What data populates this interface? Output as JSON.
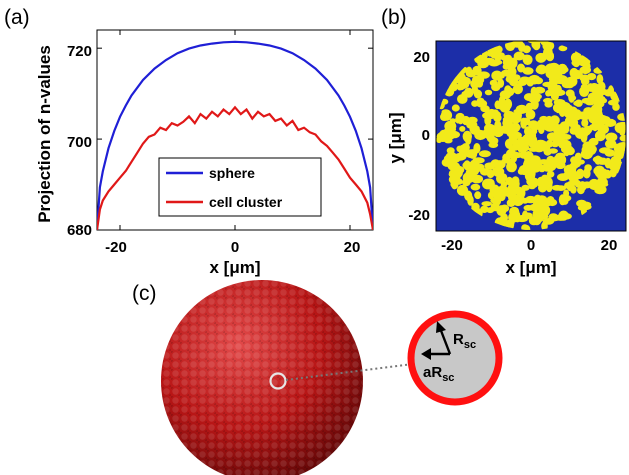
{
  "panels": {
    "a": "(a)",
    "b": "(b)",
    "c": "(c)"
  },
  "chart_data": [
    {
      "type": "line",
      "panel": "(a)",
      "xlabel": "x [μm]",
      "ylabel": "Projection of n-values",
      "xlim": [
        -24,
        24
      ],
      "ylim": [
        680,
        724
      ],
      "xticks": [
        "-20",
        "0",
        "20"
      ],
      "yticks": [
        "680",
        "700",
        "720"
      ],
      "legend_position": "bottom-center",
      "series": [
        {
          "name": "sphere",
          "color": "#1f1fd6",
          "x": [
            -24,
            -23.5,
            -23,
            -22,
            -21,
            -20,
            -19,
            -18,
            -16,
            -14,
            -12,
            -10,
            -8,
            -6,
            -4,
            -2,
            0,
            2,
            4,
            6,
            8,
            10,
            12,
            14,
            16,
            18,
            19,
            20,
            21,
            22,
            23,
            23.5,
            24
          ],
          "y": [
            680,
            689.4,
            692.9,
            698.0,
            701.8,
            704.9,
            707.4,
            709.6,
            713.0,
            715.5,
            717.4,
            718.9,
            719.9,
            720.6,
            721.0,
            721.3,
            721.4,
            721.3,
            721.0,
            720.6,
            719.9,
            718.9,
            717.4,
            715.5,
            713.0,
            709.6,
            707.4,
            704.9,
            701.8,
            698.0,
            692.9,
            689.4,
            680
          ]
        },
        {
          "name": "cell cluster",
          "color": "#e01818",
          "x": [
            -24,
            -23.5,
            -23,
            -22,
            -21,
            -20,
            -19,
            -18,
            -17,
            -16,
            -15,
            -14,
            -13,
            -12,
            -11,
            -10,
            -9,
            -8,
            -7,
            -6,
            -5,
            -4,
            -3,
            -2,
            -1,
            0,
            1,
            2,
            3,
            4,
            5,
            6,
            7,
            8,
            9,
            10,
            11,
            12,
            13,
            14,
            15,
            16,
            17,
            18,
            19,
            20,
            21,
            22,
            23,
            23.5,
            24
          ],
          "y": [
            680,
            684.5,
            686.5,
            688.5,
            690.0,
            691.5,
            693.0,
            695.0,
            697.0,
            699.0,
            700.5,
            701.0,
            702.5,
            702.0,
            703.5,
            703.0,
            703.8,
            705.0,
            703.5,
            705.5,
            704.5,
            706.0,
            705.0,
            706.5,
            705.5,
            707.0,
            705.5,
            706.5,
            704.5,
            706.0,
            705.0,
            705.5,
            704.0,
            704.5,
            703.0,
            704.0,
            702.0,
            702.5,
            701.5,
            701.0,
            699.5,
            698.5,
            697.0,
            695.5,
            693.5,
            691.5,
            690.0,
            688.5,
            686.0,
            683.5,
            680
          ]
        }
      ]
    },
    {
      "type": "heatmap",
      "panel": "(b)",
      "xlabel": "x [μm]",
      "ylabel": "y [μm]",
      "xlim": [
        -24,
        24
      ],
      "ylim": [
        -24,
        24
      ],
      "xticks": [
        "-20",
        "0",
        "20"
      ],
      "yticks": [
        "20",
        "0",
        "-20"
      ],
      "background_color": "#1c2ea8",
      "cell_color": "#f2ea1a",
      "region_radius_um": 23
    }
  ],
  "illustration": {
    "cluster_color": "#c51a1a",
    "inset_ring_color": "#ff1010",
    "inset_fill_color": "#c8c8c8",
    "r_label": "R",
    "r_sub": "sc",
    "ar_label": "aR",
    "ar_sub": "sc"
  }
}
